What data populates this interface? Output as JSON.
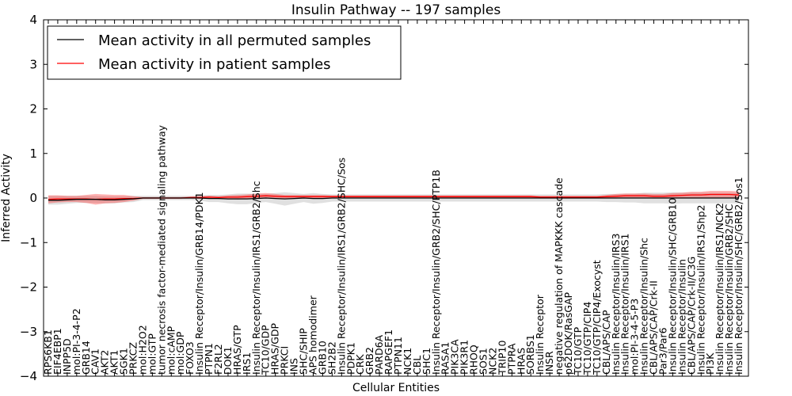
{
  "chart_data": {
    "type": "line",
    "title": "Insulin Pathway -- 197 samples",
    "xlabel": "Cellular Entities",
    "ylabel": "Inferred Activity",
    "ylim": [
      -4,
      4
    ],
    "yticks": [
      "−4",
      "−3",
      "−2",
      "−1",
      "0",
      "1",
      "2",
      "3",
      "4"
    ],
    "grid": false,
    "legend_position": "top-left",
    "categories": [
      "RPS6KB1",
      "EIF4EBP1",
      "INPP5D",
      "mol:PI-3-4-P2",
      "GRB14",
      "CAV1",
      "AKT2",
      "AKT1",
      "SGK1",
      "PRKCZ",
      "mol:H2O2",
      "mol:GTP",
      "tumor necrosis factor-mediated signaling pathway",
      "mol:cAMP",
      "mol:GDP",
      "FOXO3",
      "Insulin Receptor/Insulin/GRB14/PDK1",
      "PTPN1",
      "F2RL2",
      "DOK1",
      "HRAS/GTP",
      "IRS1",
      "Insulin Receptor/Insulin/IRS1/GRB2/Shc",
      "TC10/GDP",
      "HRAS/GDP",
      "PRKCI",
      "INS",
      "SHC/SHIP",
      "APS homodimer",
      "GRB10",
      "SH2B2",
      "Insulin Receptor/Insulin/IRS1/GRB2/SHC/Sos",
      "PDPK1",
      "CRK",
      "GRB2",
      "PARD6A",
      "RAPGEF1",
      "PTPN11",
      "NCK1",
      "CBL",
      "SHC1",
      "Insulin Receptor/Insulin/GRB2/SHC/PTP1B",
      "RASA1",
      "PIK3CA",
      "PIK3R1",
      "RHOQ",
      "SOS1",
      "NCK2",
      "TRIP10",
      "PTPRA",
      "HRAS",
      "SORBS1",
      "Insulin Receptor",
      "INSR",
      "negative regulation of MAPKKK cascade",
      "p62DOK/RasGAP",
      "TC10/GTP",
      "TC10/GTP/CIP4",
      "TC10/GTP/CIP4/Exocyst",
      "CBL/APS/CAP",
      "Insulin Receptor/Insulin/IRS3",
      "Insulin Receptor/Insulin/IRS1",
      "mol:PI-3-4-5-P3",
      "Insulin Receptor/Insulin/Shc",
      "CBL/APS/CAP/Crk-II",
      "Par3/Par6",
      "Insulin Receptor/Insulin/SHC/GRB10",
      "Insulin Receptor/Insulin",
      "CBL/APS/CAP/Crk-II/C3G",
      "Insulin Receptor/Insulin/IRS1/Shp2",
      "PI3K",
      "Insulin Receptor/Insulin/IRS1/NCK2",
      "Insulin Receptor/Insulin/GRB2/SHC",
      "Insulin Receptor/Insulin/SHC/GRB2/Sos1"
    ],
    "series": [
      {
        "name": "Mean activity in all permuted samples",
        "color": "#000000",
        "values": [
          -0.05,
          -0.05,
          -0.04,
          -0.03,
          -0.03,
          -0.03,
          -0.04,
          -0.04,
          -0.03,
          -0.02,
          0.0,
          0.0,
          0.0,
          0.0,
          0.0,
          0.0,
          0.0,
          -0.01,
          -0.01,
          -0.02,
          -0.02,
          -0.02,
          -0.01,
          0.0,
          -0.01,
          -0.02,
          -0.01,
          0.0,
          -0.01,
          -0.01,
          0.0,
          0.0,
          0.0,
          0.0,
          0.0,
          0.0,
          0.0,
          0.0,
          0.0,
          0.0,
          0.0,
          0.0,
          0.0,
          0.0,
          0.0,
          0.0,
          0.0,
          0.0,
          0.0,
          0.0,
          0.0,
          0.0,
          0.0,
          0.0,
          0.0,
          0.0,
          0.0,
          0.0,
          0.0,
          0.0,
          0.0,
          0.0,
          0.0,
          0.0,
          0.0,
          0.0,
          0.0,
          0.0,
          0.0,
          0.0,
          0.0,
          0.0,
          0.0,
          0.0
        ],
        "band": [
          0.1,
          0.1,
          0.09,
          0.08,
          0.08,
          0.08,
          0.08,
          0.08,
          0.07,
          0.07,
          0.05,
          0.05,
          0.05,
          0.05,
          0.05,
          0.05,
          0.06,
          0.08,
          0.08,
          0.1,
          0.12,
          0.12,
          0.1,
          0.09,
          0.12,
          0.15,
          0.12,
          0.09,
          0.12,
          0.1,
          0.08,
          0.08,
          0.08,
          0.08,
          0.08,
          0.08,
          0.08,
          0.08,
          0.08,
          0.08,
          0.08,
          0.08,
          0.08,
          0.08,
          0.08,
          0.08,
          0.08,
          0.08,
          0.08,
          0.08,
          0.08,
          0.08,
          0.08,
          0.08,
          0.08,
          0.08,
          0.08,
          0.08,
          0.08,
          0.09,
          0.09,
          0.1,
          0.1,
          0.12,
          0.12,
          0.12,
          0.13,
          0.12,
          0.12,
          0.12,
          0.12,
          0.12,
          0.12,
          0.12
        ]
      },
      {
        "name": "Mean activity in patient samples",
        "color": "#ff0000",
        "values": [
          -0.03,
          -0.02,
          -0.02,
          -0.02,
          -0.02,
          -0.03,
          -0.02,
          -0.02,
          -0.01,
          -0.01,
          0.0,
          0.0,
          0.0,
          0.0,
          0.0,
          0.01,
          0.01,
          0.02,
          0.01,
          0.02,
          0.02,
          0.03,
          0.04,
          0.05,
          0.04,
          0.03,
          0.03,
          0.03,
          0.03,
          0.03,
          0.03,
          0.03,
          0.03,
          0.03,
          0.03,
          0.03,
          0.03,
          0.03,
          0.03,
          0.03,
          0.03,
          0.03,
          0.03,
          0.03,
          0.03,
          0.03,
          0.03,
          0.03,
          0.03,
          0.03,
          0.03,
          0.03,
          0.02,
          0.02,
          0.02,
          0.02,
          0.02,
          0.02,
          0.02,
          0.03,
          0.04,
          0.05,
          0.05,
          0.05,
          0.04,
          0.04,
          0.05,
          0.06,
          0.07,
          0.07,
          0.08,
          0.08,
          0.08,
          0.07
        ],
        "band": [
          0.09,
          0.08,
          0.07,
          0.07,
          0.09,
          0.12,
          0.1,
          0.09,
          0.08,
          0.05,
          0.02,
          0.02,
          0.02,
          0.02,
          0.02,
          0.02,
          0.03,
          0.03,
          0.03,
          0.04,
          0.05,
          0.05,
          0.06,
          0.06,
          0.05,
          0.04,
          0.04,
          0.04,
          0.04,
          0.04,
          0.03,
          0.03,
          0.03,
          0.03,
          0.03,
          0.03,
          0.03,
          0.03,
          0.03,
          0.03,
          0.03,
          0.03,
          0.03,
          0.03,
          0.03,
          0.03,
          0.03,
          0.03,
          0.03,
          0.03,
          0.03,
          0.03,
          0.03,
          0.03,
          0.03,
          0.03,
          0.03,
          0.03,
          0.03,
          0.04,
          0.05,
          0.05,
          0.05,
          0.05,
          0.05,
          0.05,
          0.06,
          0.06,
          0.07,
          0.07,
          0.08,
          0.08,
          0.08,
          0.08
        ]
      }
    ]
  }
}
